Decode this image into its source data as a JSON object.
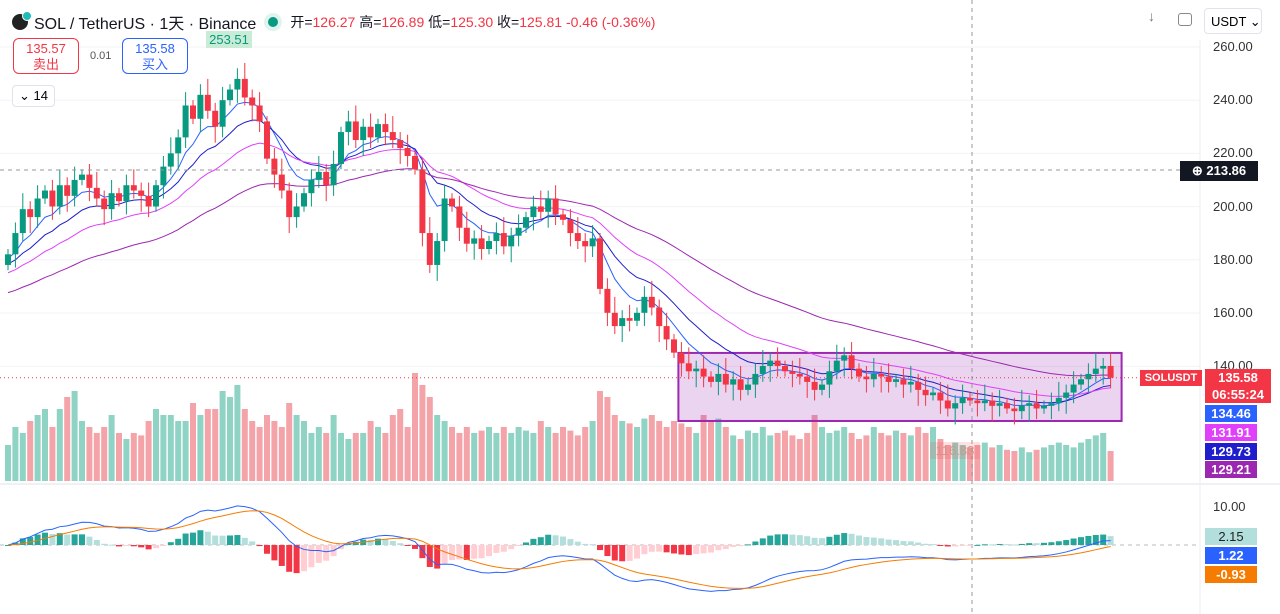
{
  "header": {
    "symbol": "SOL / TetherUS · 1天 · Binance",
    "open_label": "开=",
    "open": "126.27",
    "high_label": "高=",
    "high": "126.89",
    "low_label": "低=",
    "low": "125.30",
    "close_label": "收=",
    "close": "125.81",
    "change": "-0.46 (-0.36%)"
  },
  "trade": {
    "sell_price": "135.57",
    "sell_label": "卖出",
    "spread": "0.01",
    "buy_price": "135.58",
    "buy_label": "买入"
  },
  "indicators_toggle": "14",
  "toolbar": {
    "currency": "USDT"
  },
  "price_axis": [
    "260.00",
    "240.00",
    "220.00",
    "200.00",
    "180.00",
    "160.00",
    "140.00"
  ],
  "macd_axis": [
    "10.00"
  ],
  "labels": {
    "crosshair_price": "213.86",
    "symbol_tag": "SOLUSDT",
    "last_price": "135.58",
    "countdown": "06:55:24",
    "ma1": "134.46",
    "ma2": "131.91",
    "ma3": "129.73",
    "ma4": "129.21",
    "macd_hist": "2.15",
    "macd": "1.22",
    "signal": "-0.93",
    "high_marker": "253.51",
    "low_marker": "116.88"
  },
  "colors": {
    "up": "#089981",
    "down": "#f23645",
    "ma1": "#2962ff",
    "ma2": "#e040fb",
    "ma3": "#1e1ecc",
    "ma4": "#9c27b0",
    "macd": "#2962ff",
    "signal": "#f57c00",
    "box": "#9c27b0"
  },
  "chart_data": {
    "type": "candlestick",
    "price_range": [
      130,
      260
    ],
    "closes": [
      182,
      190,
      199,
      196,
      203,
      206,
      200,
      208,
      204,
      210,
      212,
      207,
      203,
      199,
      205,
      202,
      208,
      206,
      204,
      200,
      208,
      215,
      220,
      226,
      238,
      233,
      242,
      236,
      230,
      240,
      244,
      248,
      241,
      238,
      232,
      218,
      212,
      206,
      196,
      200,
      205,
      210,
      213,
      208,
      216,
      228,
      232,
      225,
      230,
      226,
      231,
      228,
      225,
      222,
      219,
      214,
      190,
      178,
      187,
      203,
      200,
      192,
      186,
      188,
      184,
      187,
      190,
      185,
      189,
      192,
      196,
      200,
      198,
      203,
      197,
      195,
      190,
      187,
      185,
      188,
      169,
      160,
      155,
      158,
      157,
      160,
      166,
      162,
      155,
      150,
      145,
      141,
      138,
      139,
      136,
      134,
      137,
      133,
      135,
      131,
      133,
      137,
      140,
      142,
      140,
      138,
      137,
      136,
      134,
      131,
      133,
      138,
      142,
      144,
      139,
      136,
      135,
      137,
      136,
      134,
      135,
      133,
      134,
      131,
      129,
      130,
      127,
      124,
      126,
      128,
      127,
      126,
      127,
      125,
      126,
      124,
      123,
      125,
      126,
      124,
      125,
      126,
      128,
      130,
      133,
      135,
      137,
      139,
      140,
      135.58
    ],
    "volumes": [
      30,
      45,
      40,
      50,
      55,
      60,
      45,
      60,
      70,
      75,
      50,
      45,
      40,
      45,
      55,
      40,
      35,
      40,
      38,
      50,
      60,
      55,
      55,
      50,
      50,
      65,
      55,
      60,
      60,
      75,
      70,
      80,
      60,
      50,
      45,
      55,
      50,
      45,
      65,
      55,
      50,
      40,
      45,
      40,
      55,
      40,
      35,
      40,
      40,
      50,
      45,
      40,
      55,
      60,
      45,
      90,
      80,
      70,
      55,
      50,
      45,
      40,
      45,
      40,
      42,
      45,
      40,
      45,
      40,
      45,
      42,
      40,
      50,
      45,
      40,
      45,
      42,
      38,
      45,
      50,
      75,
      70,
      55,
      50,
      48,
      45,
      52,
      55,
      50,
      45,
      50,
      48,
      45,
      40,
      55,
      50,
      52,
      45,
      38,
      35,
      42,
      40,
      45,
      38,
      40,
      42,
      38,
      35,
      40,
      55,
      45,
      40,
      42,
      45,
      40,
      35,
      38,
      45,
      40,
      38,
      42,
      40,
      38,
      45,
      40,
      45,
      35,
      30,
      32,
      30,
      28,
      30,
      32,
      28,
      30,
      26,
      25,
      28,
      24,
      26,
      28,
      30,
      32,
      30,
      28,
      32,
      35,
      38,
      40,
      25
    ],
    "ma_periods": [
      7,
      14,
      25,
      50
    ],
    "box_price_range": [
      119.3,
      144.9
    ],
    "box_start_index": 91
  }
}
